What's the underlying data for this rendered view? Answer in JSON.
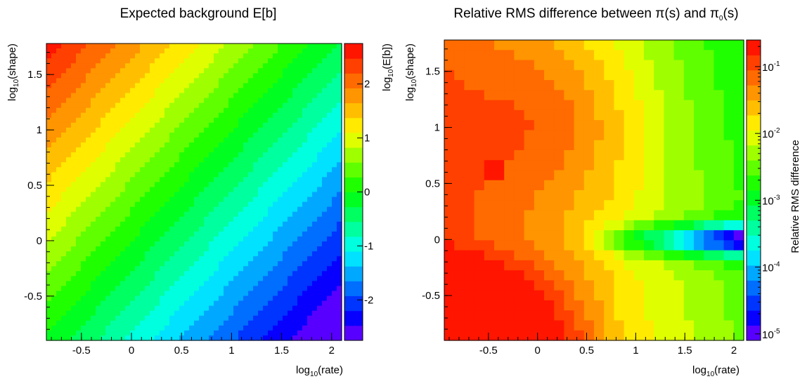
{
  "chart_data": [
    {
      "type": "heatmap",
      "title": "Expected background E[b]",
      "xlabel": {
        "base": "log",
        "sub": "10",
        "rest": "(rate)"
      },
      "ylabel": {
        "base": "log",
        "sub": "10",
        "rest": "(shape)"
      },
      "zlabel": {
        "base": "log",
        "sub": "10",
        "rest": "(E[b])"
      },
      "xlim": [
        -0.85,
        2.1
      ],
      "ylim": [
        -0.9,
        1.78
      ],
      "xticks": [
        "-0.5",
        "0",
        "0.5",
        "1",
        "1.5",
        "2"
      ],
      "yticks": [
        "-0.5",
        "0",
        "0.5",
        "1",
        "1.5"
      ],
      "zlim": [
        -2.75,
        2.75
      ],
      "zticks": [
        "-2",
        "-1",
        "0",
        "1",
        "2"
      ],
      "model": "log10(E[b]) = log10(shape) - log10(rate)",
      "grid": false,
      "colorbar": "right"
    },
    {
      "type": "heatmap",
      "title": {
        "pre": "Relative RMS difference between ",
        "pi": "π",
        "mid": "(s) and ",
        "pi2": "π",
        "sub": "0",
        "post": "(s)"
      },
      "xlabel": {
        "base": "log",
        "sub": "10",
        "rest": "(rate)"
      },
      "ylabel": {
        "base": "log",
        "sub": "10",
        "rest": "(shape)"
      },
      "zlabel": "Relative RMS difference",
      "xlim": [
        -0.95,
        2.1
      ],
      "ylim": [
        -0.9,
        1.78
      ],
      "xticks": [
        "-0.5",
        "0",
        "0.5",
        "1",
        "1.5",
        "2"
      ],
      "yticks": [
        "-0.5",
        "0",
        "0.5",
        "1",
        "1.5"
      ],
      "zscale": "log",
      "zlim": [
        8e-06,
        0.25
      ],
      "zticks": [
        {
          "base": "10",
          "exp": "-1"
        },
        {
          "base": "10",
          "exp": "-2"
        },
        {
          "base": "10",
          "exp": "-3"
        },
        {
          "base": "10",
          "exp": "-4"
        },
        {
          "base": "10",
          "exp": "-5"
        }
      ],
      "grid": false,
      "colorbar": "right",
      "features": {
        "yellow_blob_center": [
          0.35,
          1.1
        ],
        "orange_patch": [
          -0.5,
          0.6
        ],
        "dark_blue_valley_y": 0.0,
        "red_corner": "bottom-left"
      }
    }
  ]
}
